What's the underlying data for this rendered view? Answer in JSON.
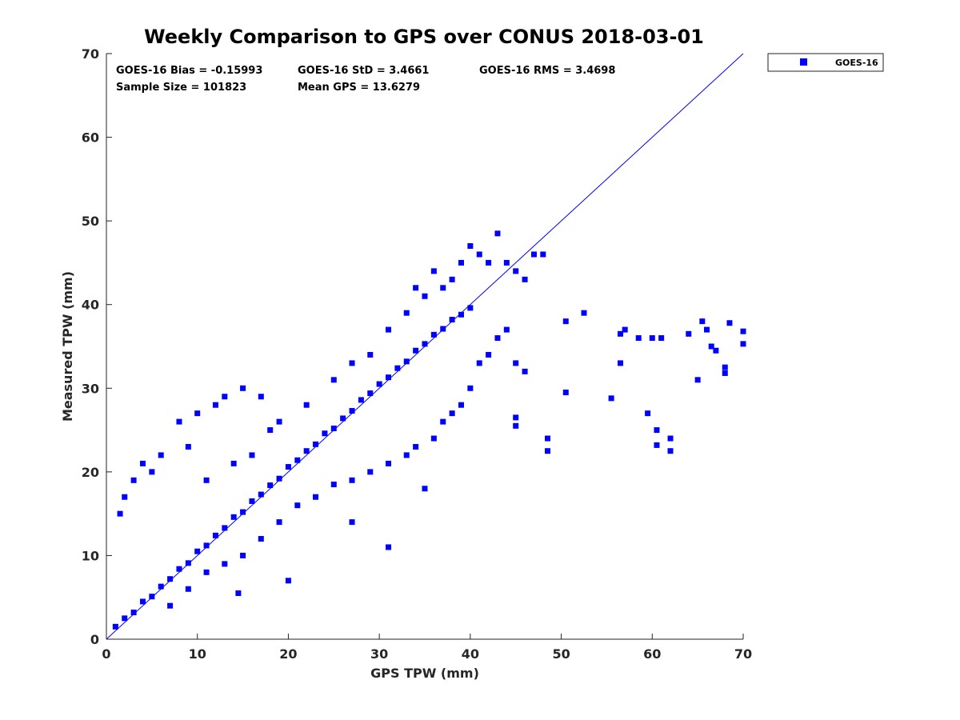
{
  "chart_data": {
    "type": "scatter",
    "title": "Weekly Comparison to GPS over CONUS 2018-03-01",
    "xlabel": "GPS TPW (mm)",
    "ylabel": "Measured TPW (mm)",
    "xlim": [
      0,
      70
    ],
    "ylim": [
      0,
      70
    ],
    "xticks": [
      0,
      10,
      20,
      30,
      40,
      50,
      60,
      70
    ],
    "yticks": [
      0,
      10,
      20,
      30,
      40,
      50,
      60,
      70
    ],
    "grid": false,
    "legend_position": "outside-top-right",
    "series": [
      {
        "name": "GOES-16",
        "color": "#0000ff",
        "marker": "square",
        "description": "dense cloud along the 1:1 line from 0 to ~45 mm",
        "points": [
          [
            1,
            1.5
          ],
          [
            2,
            2.5
          ],
          [
            3,
            3.2
          ],
          [
            4,
            4.5
          ],
          [
            5,
            5.1
          ],
          [
            6,
            6.3
          ],
          [
            7,
            7.2
          ],
          [
            8,
            8.4
          ],
          [
            9,
            9.1
          ],
          [
            10,
            10.5
          ],
          [
            11,
            11.2
          ],
          [
            12,
            12.4
          ],
          [
            13,
            13.3
          ],
          [
            14,
            14.6
          ],
          [
            15,
            15.2
          ],
          [
            16,
            16.5
          ],
          [
            17,
            17.3
          ],
          [
            18,
            18.4
          ],
          [
            19,
            19.2
          ],
          [
            20,
            20.6
          ],
          [
            21,
            21.4
          ],
          [
            22,
            22.5
          ],
          [
            23,
            23.3
          ],
          [
            24,
            24.6
          ],
          [
            25,
            25.2
          ],
          [
            26,
            26.4
          ],
          [
            27,
            27.3
          ],
          [
            28,
            28.6
          ],
          [
            29,
            29.4
          ],
          [
            30,
            30.5
          ],
          [
            31,
            31.3
          ],
          [
            32,
            32.4
          ],
          [
            33,
            33.2
          ],
          [
            34,
            34.5
          ],
          [
            35,
            35.3
          ],
          [
            36,
            36.4
          ],
          [
            37,
            37.1
          ],
          [
            38,
            38.2
          ],
          [
            39,
            38.8
          ],
          [
            40,
            39.6
          ],
          [
            1.5,
            15
          ],
          [
            2,
            17
          ],
          [
            3,
            19
          ],
          [
            4,
            21
          ],
          [
            5,
            20
          ],
          [
            6,
            22
          ],
          [
            8,
            26
          ],
          [
            9,
            23
          ],
          [
            10,
            27
          ],
          [
            12,
            28
          ],
          [
            13,
            29
          ],
          [
            15,
            30
          ],
          [
            17,
            29
          ],
          [
            11,
            19
          ],
          [
            14,
            21
          ],
          [
            16,
            22
          ],
          [
            18,
            25
          ],
          [
            19,
            26
          ],
          [
            22,
            28
          ],
          [
            25,
            31
          ],
          [
            27,
            33
          ],
          [
            29,
            34
          ],
          [
            31,
            37
          ],
          [
            33,
            39
          ],
          [
            34,
            42
          ],
          [
            35,
            41
          ],
          [
            36,
            44
          ],
          [
            37,
            42
          ],
          [
            38,
            43
          ],
          [
            39,
            45
          ],
          [
            40,
            47
          ],
          [
            41,
            46
          ],
          [
            42,
            45
          ],
          [
            43,
            48.5
          ],
          [
            44,
            45
          ],
          [
            45,
            44
          ],
          [
            46,
            43
          ],
          [
            47,
            46
          ],
          [
            48,
            46
          ],
          [
            36,
            24
          ],
          [
            37,
            26
          ],
          [
            38,
            27
          ],
          [
            39,
            28
          ],
          [
            40,
            30
          ],
          [
            41,
            33
          ],
          [
            42,
            34
          ],
          [
            43,
            36
          ],
          [
            44,
            37
          ],
          [
            45,
            33
          ],
          [
            46,
            32
          ],
          [
            7,
            4
          ],
          [
            9,
            6
          ],
          [
            11,
            8
          ],
          [
            13,
            9
          ],
          [
            15,
            10
          ],
          [
            17,
            12
          ],
          [
            19,
            14
          ],
          [
            21,
            16
          ],
          [
            23,
            17
          ],
          [
            25,
            18.5
          ],
          [
            27,
            19
          ],
          [
            29,
            20
          ],
          [
            31,
            21
          ],
          [
            33,
            22
          ],
          [
            14.5,
            5.5
          ],
          [
            20,
            7
          ],
          [
            27,
            14
          ],
          [
            31,
            11
          ],
          [
            35,
            18
          ],
          [
            34,
            23
          ],
          [
            45,
            25.5
          ],
          [
            45,
            26.5
          ],
          [
            48.5,
            24
          ],
          [
            48.5,
            22.5
          ],
          [
            50.5,
            29.5
          ],
          [
            50.5,
            38
          ],
          [
            52.5,
            39
          ],
          [
            55.5,
            28.8
          ],
          [
            56.5,
            36.5
          ],
          [
            56.5,
            33
          ],
          [
            57,
            37
          ],
          [
            58.5,
            36
          ],
          [
            59.5,
            27
          ],
          [
            60,
            36
          ],
          [
            60.5,
            25
          ],
          [
            60.5,
            23.2
          ],
          [
            61,
            36
          ],
          [
            62,
            24
          ],
          [
            62,
            22.5
          ],
          [
            64,
            36.5
          ],
          [
            65,
            31
          ],
          [
            65.5,
            38
          ],
          [
            66,
            37
          ],
          [
            66.5,
            35
          ],
          [
            67,
            34.5
          ],
          [
            68,
            32.5
          ],
          [
            68,
            31.8
          ],
          [
            68.5,
            37.8
          ],
          [
            70,
            36.8
          ],
          [
            70,
            35.3
          ]
        ]
      }
    ],
    "reference_line": {
      "name": "1:1 line",
      "x": [
        0,
        70
      ],
      "y": [
        0,
        70
      ],
      "color": "#0000ff"
    },
    "annotations": {
      "bias": "GOES-16 Bias = -0.15993",
      "std": "GOES-16 StD = 3.4661",
      "rms": "GOES-16 RMS = 3.4698",
      "sample_size": "Sample Size = 101823",
      "mean_gps": "Mean GPS = 13.6279"
    },
    "legend": {
      "label": "GOES-16"
    }
  }
}
